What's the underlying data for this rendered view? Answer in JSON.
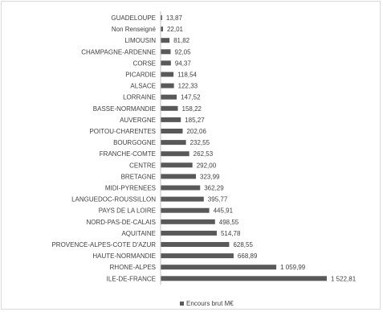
{
  "chart_data": {
    "type": "bar",
    "orientation": "horizontal",
    "categories": [
      "GUADELOUPE",
      "Non Renseigné",
      "LIMOUSIN",
      "CHAMPAGNE-ARDENNE",
      "CORSE",
      "PICARDIE",
      "ALSACE",
      "LORRAINE",
      "BASSE-NORMANDIE",
      "AUVERGNE",
      "POITOU-CHARENTES",
      "BOURGOGNE",
      "FRANCHE-COMTE",
      "CENTRE",
      "BRETAGNE",
      "MIDI-PYRENEES",
      "LANGUEDOC-ROUSSILLON",
      "PAYS DE LA LOIRE",
      "NORD-PAS-DE-CALAIS",
      "AQUITAINE",
      "PROVENCE-ALPES-COTE D'AZUR",
      "HAUTE-NORMANDIE",
      "RHONE-ALPES",
      "ILE-DE-FRANCE"
    ],
    "values": [
      13.87,
      22.01,
      81.82,
      92.05,
      94.37,
      118.54,
      122.33,
      147.52,
      158.22,
      185.27,
      202.06,
      232.55,
      262.53,
      292.0,
      323.99,
      362.29,
      395.77,
      445.91,
      498.55,
      514.78,
      628.55,
      668.89,
      1059.99,
      1522.81
    ],
    "value_labels": [
      "13,87",
      "22,01",
      "81,82",
      "92,05",
      "94,37",
      "118,54",
      "122,33",
      "147,52",
      "158,22",
      "185,27",
      "202,06",
      "232,55",
      "262,53",
      "292,00",
      "323,99",
      "362,29",
      "395,77",
      "445,91",
      "498,55",
      "514,78",
      "628,55",
      "668,89",
      "1 059,99",
      "1 522,81"
    ],
    "series": [
      {
        "name": "Encours brut M€",
        "color": "#595959"
      }
    ],
    "xlim": [
      0,
      1522.81
    ],
    "grid": false,
    "legend_position": "bottom"
  }
}
